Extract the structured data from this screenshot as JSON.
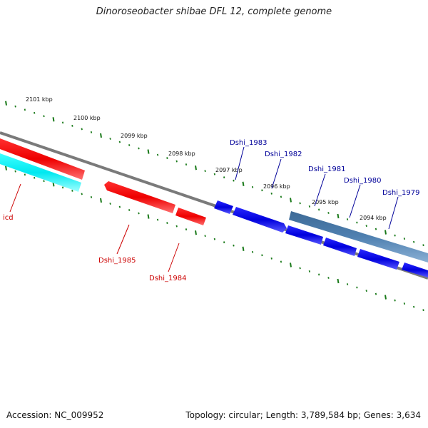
{
  "title": "Dinoroseobacter shibae DFL 12, complete genome",
  "footer": {
    "accession": "Accession: NC_009952",
    "summary": "Topology: circular; Length: 3,789,584 bp; Genes: 3,634"
  },
  "kbp_ticks": [
    "2101 kbp",
    "2100 kbp",
    "2099 kbp",
    "2098 kbp",
    "2097 kbp",
    "2096 kbp",
    "2095 kbp",
    "2094 kbp"
  ],
  "genes": [
    {
      "name": "icd",
      "color": "#cc0000",
      "track": "cyan"
    },
    {
      "name": "Dshi_1985",
      "color": "#cc0000",
      "track": "red"
    },
    {
      "name": "Dshi_1984",
      "color": "#cc0000",
      "track": "red"
    },
    {
      "name": "Dshi_1983",
      "color": "#000099",
      "track": "blue"
    },
    {
      "name": "Dshi_1982",
      "color": "#000099",
      "track": "blue"
    },
    {
      "name": "Dshi_1981",
      "color": "#000099",
      "track": "blue"
    },
    {
      "name": "Dshi_1980",
      "color": "#000099",
      "track": "blue"
    },
    {
      "name": "Dshi_1979",
      "color": "#000099",
      "track": "blue"
    }
  ],
  "colors": {
    "backbone": "#808080",
    "tick_green": "#1a7a1a",
    "red_gene": "#ff0000",
    "cyan_gene": "#00ffff",
    "blue_gene": "#0000ff",
    "steel_gene": "#4a7aa8"
  }
}
